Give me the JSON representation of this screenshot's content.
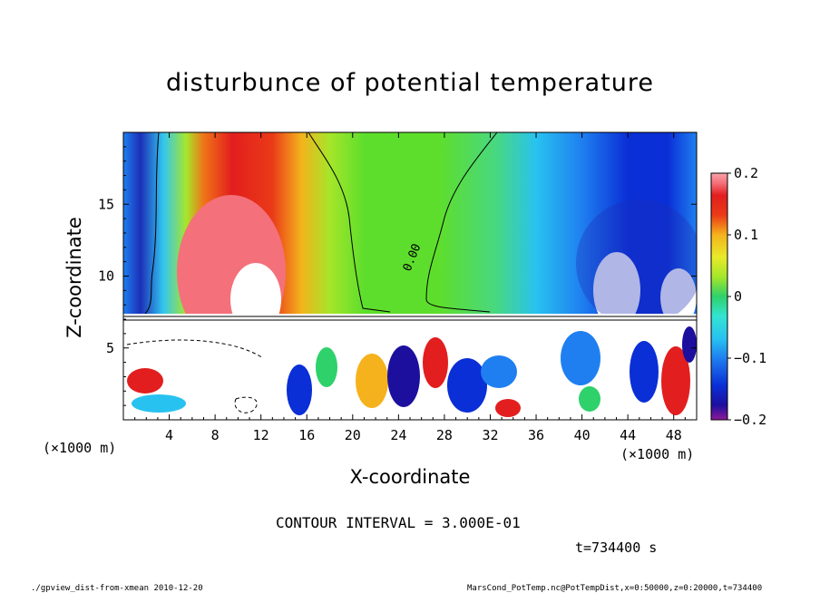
{
  "title": "disturbunce of potential temperature",
  "chart_data": {
    "type": "heatmap",
    "title": "disturbunce of potential temperature",
    "xlabel": "X-coordinate",
    "ylabel": "Z-coordinate",
    "x_unit": "(×1000 m)",
    "y_unit": "(×1000 m)",
    "xlim": [
      0,
      50
    ],
    "ylim": [
      0,
      20
    ],
    "x_ticks": [
      4,
      8,
      12,
      16,
      20,
      24,
      28,
      32,
      36,
      40,
      44,
      48
    ],
    "y_ticks": [
      5,
      10,
      15
    ],
    "contour_label": "0.00",
    "colorbar": {
      "range": [
        -0.2,
        0.2
      ],
      "tick_values": [
        0.2,
        0.1,
        0,
        -0.1,
        -0.2
      ],
      "tick_labels": [
        "0.2",
        "0.1",
        "0",
        "−0.1",
        "−0.2"
      ],
      "colors": [
        "#8e1a9a",
        "#1c0f9e",
        "#0a2fd6",
        "#1f7ff0",
        "#28c2f0",
        "#33e4d2",
        "#2fd16a",
        "#5ede2c",
        "#a6e62a",
        "#e8ea2a",
        "#f5b21c",
        "#f07418",
        "#ea3a18",
        "#e21e1e",
        "#f4707a",
        "#f8a5a8"
      ]
    },
    "field_summary": [
      {
        "region": "upper left warm anomaly",
        "x_range": [
          5,
          14
        ],
        "z_range": [
          8,
          20
        ],
        "value": 0.2
      },
      {
        "region": "upper middle near zero",
        "x_range": [
          16,
          34
        ],
        "z_range": [
          8,
          20
        ],
        "value": 0.0
      },
      {
        "region": "upper right cold anomaly",
        "x_range": [
          38,
          50
        ],
        "z_range": [
          8,
          20
        ],
        "value": -0.2
      },
      {
        "region": "lower turbulent layer",
        "x_range": [
          0,
          50
        ],
        "z_range": [
          0,
          7.5
        ],
        "value": "mixed"
      }
    ]
  },
  "contour_interval": "CONTOUR INTERVAL = 3.000E-01",
  "time_label": "t=734400 s",
  "footer_left": "./gpview_dist-from-xmean  2010-12-20",
  "footer_right": "MarsCond_PotTemp.nc@PotTempDist,x=0:50000,z=0:20000,t=734400"
}
